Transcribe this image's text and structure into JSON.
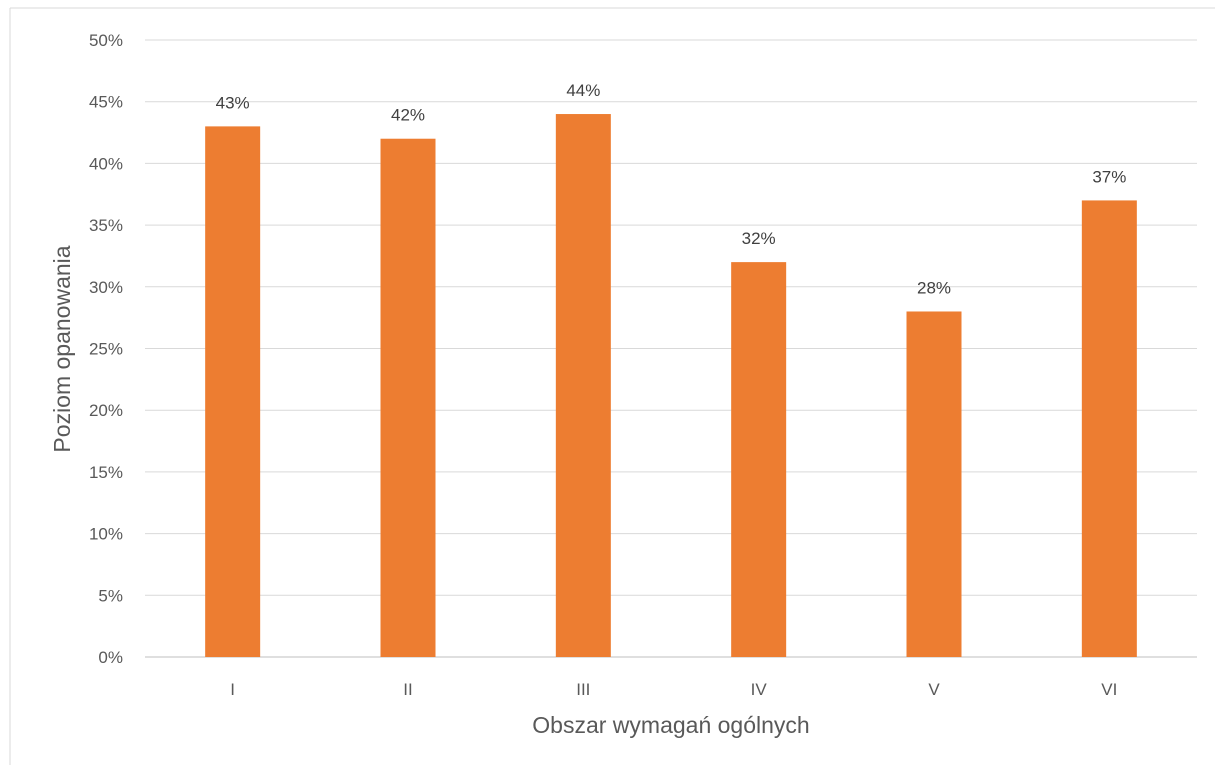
{
  "chart_data": {
    "type": "bar",
    "categories": [
      "I",
      "II",
      "III",
      "IV",
      "V",
      "VI"
    ],
    "values": [
      43,
      42,
      44,
      32,
      28,
      37
    ],
    "data_labels": [
      "43%",
      "42%",
      "44%",
      "32%",
      "28%",
      "37%"
    ],
    "title": "",
    "xlabel": "Obszar wymagań ogólnych",
    "ylabel": "Poziom opanowania",
    "ylim": [
      0,
      50
    ],
    "y_ticks": [
      0,
      5,
      10,
      15,
      20,
      25,
      30,
      35,
      40,
      45,
      50
    ],
    "y_tick_labels": [
      "0%",
      "5%",
      "10%",
      "15%",
      "20%",
      "25%",
      "30%",
      "35%",
      "40%",
      "45%",
      "50%"
    ],
    "grid": true,
    "legend": "none",
    "bar_color": "#ed7d31"
  }
}
